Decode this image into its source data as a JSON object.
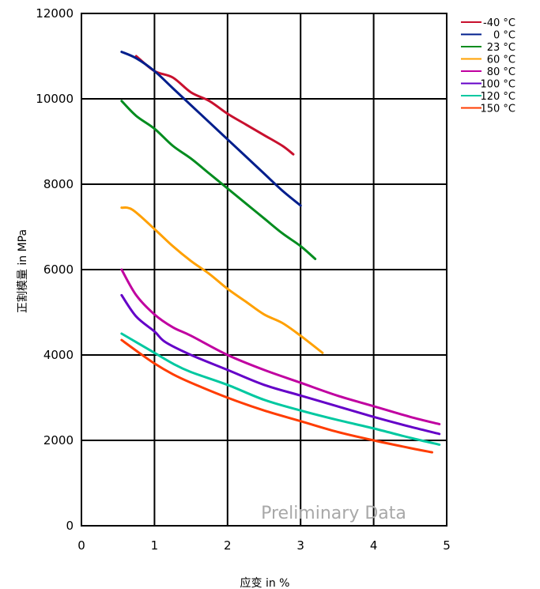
{
  "chart_data": {
    "type": "line",
    "title": "",
    "xlabel": "应变 in %",
    "ylabel": "正割模量 in MPa",
    "xlim": [
      0,
      5
    ],
    "ylim": [
      0,
      12000
    ],
    "x_ticks": [
      "0",
      "1",
      "2",
      "3",
      "4",
      "5"
    ],
    "y_ticks": [
      "0",
      "2000",
      "4000",
      "6000",
      "8000",
      "10000",
      "12000"
    ],
    "grid": true,
    "legend_position": "top-right, outside plot",
    "watermark": "Preliminary Data",
    "series": [
      {
        "name": "-40 °C",
        "color": "#c8102e",
        "x": [
          0.75,
          1.0,
          1.25,
          1.5,
          1.75,
          2.0,
          2.25,
          2.5,
          2.75,
          2.9
        ],
        "y": [
          11000,
          10650,
          10500,
          10150,
          9950,
          9650,
          9400,
          9150,
          8900,
          8700
        ]
      },
      {
        "name": "0 °C",
        "color": "#001e8c",
        "x": [
          0.55,
          0.75,
          1.0,
          1.25,
          1.5,
          1.75,
          2.0,
          2.25,
          2.5,
          2.75,
          3.0
        ],
        "y": [
          11100,
          10950,
          10650,
          10250,
          9850,
          9450,
          9050,
          8650,
          8250,
          7850,
          7500
        ]
      },
      {
        "name": "23 °C",
        "color": "#008c1e",
        "x": [
          0.55,
          0.75,
          1.0,
          1.25,
          1.5,
          1.75,
          2.0,
          2.25,
          2.5,
          2.75,
          3.0,
          3.2
        ],
        "y": [
          9950,
          9600,
          9300,
          8900,
          8600,
          8250,
          7900,
          7550,
          7200,
          6850,
          6550,
          6250
        ]
      },
      {
        "name": "60 °C",
        "color": "#ffa000",
        "x": [
          0.55,
          0.7,
          1.0,
          1.25,
          1.5,
          1.75,
          2.0,
          2.25,
          2.5,
          2.75,
          3.0,
          3.3
        ],
        "y": [
          7450,
          7400,
          6950,
          6550,
          6200,
          5900,
          5550,
          5250,
          4950,
          4750,
          4450,
          4050
        ]
      },
      {
        "name": "80 °C",
        "color": "#c000a0",
        "x": [
          0.55,
          0.75,
          1.0,
          1.25,
          1.5,
          2.0,
          2.5,
          3.0,
          3.5,
          4.0,
          4.5,
          4.9
        ],
        "y": [
          6000,
          5400,
          4950,
          4650,
          4450,
          4000,
          3650,
          3350,
          3050,
          2800,
          2550,
          2380
        ]
      },
      {
        "name": "100 °C",
        "color": "#6400c8",
        "x": [
          0.55,
          0.75,
          1.0,
          1.15,
          1.5,
          2.0,
          2.5,
          3.0,
          3.5,
          4.0,
          4.5,
          4.9
        ],
        "y": [
          5400,
          4900,
          4550,
          4300,
          4000,
          3650,
          3300,
          3050,
          2800,
          2550,
          2320,
          2150
        ]
      },
      {
        "name": "120 °C",
        "color": "#00c8a0",
        "x": [
          0.55,
          0.75,
          1.0,
          1.25,
          1.5,
          2.0,
          2.5,
          3.0,
          3.5,
          4.0,
          4.5,
          4.9
        ],
        "y": [
          4500,
          4300,
          4050,
          3800,
          3600,
          3300,
          2950,
          2700,
          2480,
          2280,
          2060,
          1900
        ]
      },
      {
        "name": "150 °C",
        "color": "#ff3c00",
        "x": [
          0.55,
          0.75,
          1.0,
          1.25,
          1.5,
          2.0,
          2.5,
          3.0,
          3.5,
          4.0,
          4.5,
          4.8
        ],
        "y": [
          4350,
          4100,
          3800,
          3550,
          3350,
          3000,
          2700,
          2450,
          2200,
          2000,
          1820,
          1720
        ]
      }
    ]
  }
}
